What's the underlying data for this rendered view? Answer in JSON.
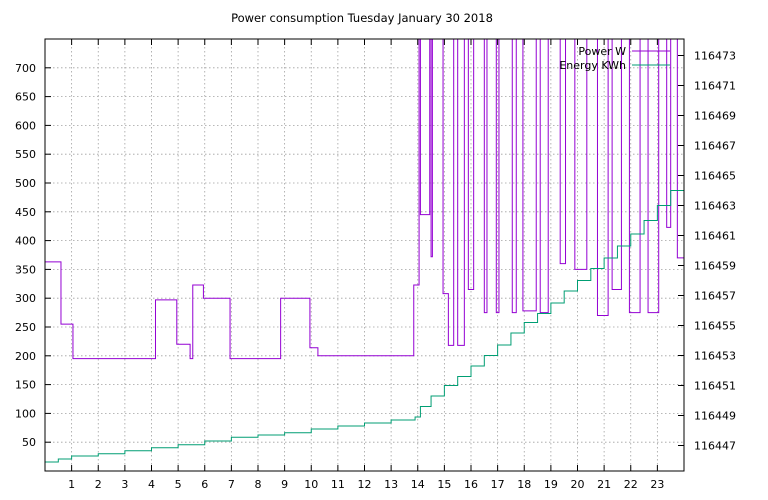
{
  "chart_data": {
    "type": "line",
    "title": "Power consumption Tuesday January 30 2018",
    "xlabel": "",
    "ylabel": "",
    "x_ticks": [
      "1",
      "2",
      "3",
      "4",
      "5",
      "6",
      "7",
      "8",
      "9",
      "10",
      "11",
      "12",
      "13",
      "14",
      "15",
      "16",
      "17",
      "18",
      "19",
      "20",
      "21",
      "22",
      "23"
    ],
    "y_ticks": [
      "50",
      "100",
      "150",
      "200",
      "250",
      "300",
      "350",
      "400",
      "450",
      "500",
      "550",
      "600",
      "650",
      "700"
    ],
    "y2_ticks": [
      "116447",
      "116449",
      "116451",
      "116453",
      "116455",
      "116457",
      "116459",
      "116461",
      "116463",
      "116465",
      "116467",
      "116469",
      "116471",
      "116473"
    ],
    "xlim": [
      0,
      24
    ],
    "ylim": [
      0,
      750
    ],
    "y2lim": [
      116445.3,
      116474.1
    ],
    "grid": true,
    "legend_position": "top-right",
    "series": [
      {
        "name": "Power W",
        "color": "#9400d3",
        "axis": "left",
        "x": [
          0,
          0.6,
          0.6,
          1.05,
          1.05,
          4.15,
          4.15,
          4.95,
          4.95,
          5.45,
          5.45,
          5.55,
          5.55,
          5.95,
          5.95,
          6.95,
          6.95,
          8.85,
          8.85,
          9.95,
          9.95,
          10.25,
          10.25,
          13.85,
          13.85,
          14.05,
          14.05,
          14.1,
          14.1,
          14.45,
          14.45,
          14.5,
          14.5,
          14.55,
          14.55,
          14.95,
          14.95,
          15.15,
          15.15,
          15.35,
          15.35,
          15.5,
          15.5,
          15.75,
          15.75,
          15.9,
          15.9,
          16.1,
          16.1,
          16.5,
          16.5,
          16.6,
          16.6,
          16.95,
          16.95,
          17.05,
          17.05,
          17.55,
          17.55,
          17.7,
          17.7,
          17.95,
          17.95,
          18.45,
          18.45,
          18.6,
          18.6,
          18.9,
          18.9,
          19.35,
          19.35,
          19.55,
          19.55,
          19.9,
          19.9,
          20.35,
          20.35,
          20.75,
          20.75,
          21.15,
          21.15,
          21.3,
          21.3,
          21.65,
          21.65,
          21.95,
          21.95,
          22.35,
          22.35,
          22.65,
          22.65,
          23.05,
          23.05,
          23.35,
          23.35,
          23.5,
          23.5,
          23.75,
          23.75,
          24
        ],
        "values": [
          363,
          363,
          255,
          255,
          195,
          195,
          297,
          297,
          220,
          220,
          195,
          195,
          323,
          323,
          300,
          300,
          195,
          195,
          300,
          300,
          214,
          214,
          200,
          200,
          323,
          323,
          750,
          750,
          445,
          445,
          750,
          750,
          372,
          372,
          750,
          750,
          308,
          308,
          218,
          218,
          750,
          750,
          218,
          218,
          750,
          750,
          315,
          315,
          750,
          750,
          275,
          275,
          750,
          750,
          275,
          275,
          750,
          750,
          275,
          275,
          750,
          750,
          278,
          278,
          750,
          750,
          275,
          275,
          750,
          750,
          360,
          360,
          750,
          750,
          350,
          350,
          750,
          750,
          270,
          270,
          750,
          750,
          315,
          315,
          750,
          750,
          275,
          275,
          750,
          750,
          275,
          275,
          750,
          750,
          423,
          423,
          750,
          750,
          370,
          370
        ]
      },
      {
        "name": "Energy KWh",
        "color": "#009e73",
        "axis": "right",
        "x": [
          0,
          0.5,
          1,
          2,
          3,
          4,
          5,
          6,
          7,
          8,
          9,
          10,
          11,
          12,
          13,
          13.9,
          14.1,
          14.5,
          15,
          15.5,
          16,
          16.5,
          17,
          17.5,
          18,
          18.5,
          19,
          19.5,
          20,
          20.5,
          21,
          21.5,
          22,
          22.5,
          23,
          23.5,
          24
        ],
        "values": [
          116445.9,
          116446.1,
          116446.3,
          116446.45,
          116446.65,
          116446.85,
          116447.05,
          116447.3,
          116447.55,
          116447.7,
          116447.85,
          116448.1,
          116448.3,
          116448.5,
          116448.7,
          116448.9,
          116449.6,
          116450.3,
          116451.0,
          116451.6,
          116452.3,
          116453.0,
          116453.7,
          116454.5,
          116455.2,
          116455.8,
          116456.5,
          116457.3,
          116458.0,
          116458.8,
          116459.5,
          116460.3,
          116461.1,
          116462.0,
          116463.0,
          116464.0,
          116465.1
        ]
      }
    ]
  }
}
